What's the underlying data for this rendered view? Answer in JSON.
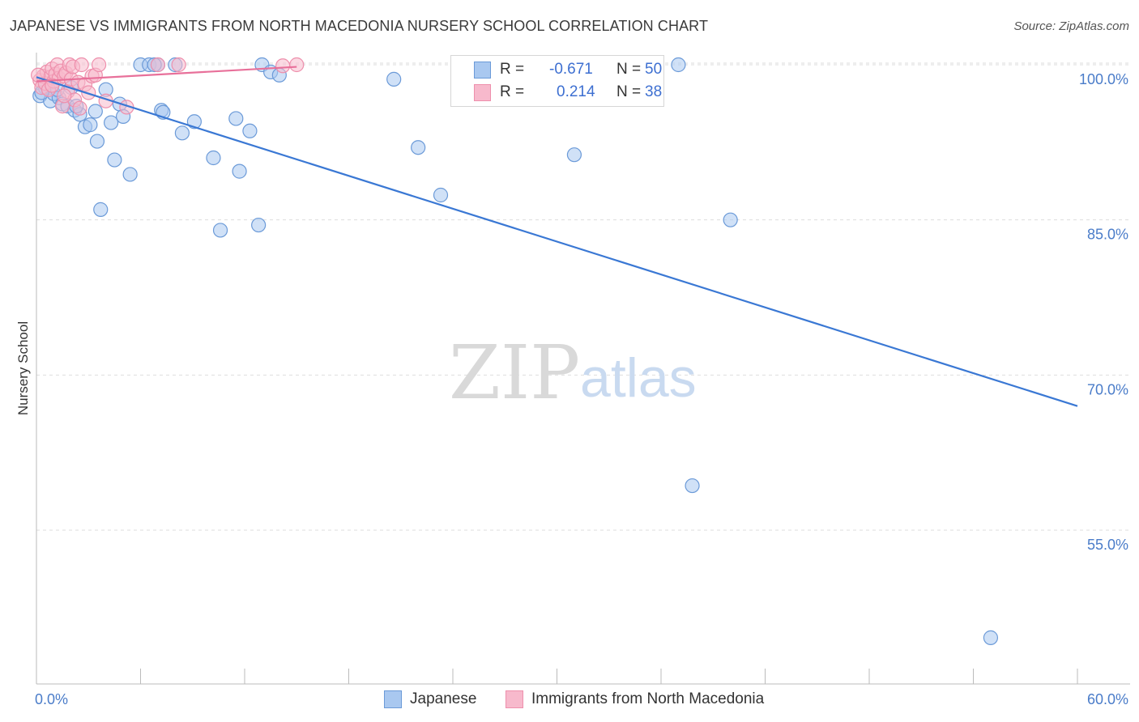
{
  "header": {
    "title": "JAPANESE VS IMMIGRANTS FROM NORTH MACEDONIA NURSERY SCHOOL CORRELATION CHART",
    "source": "Source: ZipAtlas.com"
  },
  "watermark": {
    "zip": "ZIP",
    "atlas": "atlas"
  },
  "stats_legend": {
    "rows": [
      {
        "r_label": "R =",
        "r_value": "-0.671",
        "n_label": "N =",
        "n_value": "50"
      },
      {
        "r_label": "R =",
        "r_value": "0.214",
        "n_label": "N =",
        "n_value": "38"
      }
    ]
  },
  "bottom_legend": {
    "series1": "Japanese",
    "series2": "Immigrants from North Macedonia"
  },
  "colors": {
    "series1_fill": "#a9c8f0",
    "series1_stroke": "#6b9ad8",
    "series1_line": "#3a78d4",
    "series2_fill": "#f7b9cc",
    "series2_stroke": "#ee8fac",
    "series2_line": "#e8709a",
    "grid": "#dddddd",
    "tick_text": "#4a7cc9"
  },
  "chart_data": {
    "type": "scatter",
    "title": "JAPANESE VS IMMIGRANTS FROM NORTH MACEDONIA NURSERY SCHOOL CORRELATION CHART",
    "xlabel": "",
    "ylabel": "Nursery School",
    "xlim": [
      0,
      60
    ],
    "ylim": [
      40,
      101.5
    ],
    "x_tick_labels": [
      "0.0%",
      "60.0%"
    ],
    "y_ticks": [
      55,
      70,
      85,
      100
    ],
    "y_tick_labels": [
      "55.0%",
      "70.0%",
      "85.0%",
      "100.0%"
    ],
    "grid": true,
    "series": [
      {
        "name": "Japanese",
        "r": -0.671,
        "n": 50,
        "trend": {
          "x": [
            0,
            60
          ],
          "y": [
            98.8,
            67.0
          ]
        },
        "points": [
          [
            0.2,
            97.0
          ],
          [
            0.5,
            97.8
          ],
          [
            0.8,
            96.5
          ],
          [
            1.0,
            97.2
          ],
          [
            1.3,
            96.8
          ],
          [
            1.5,
            96.2
          ],
          [
            1.8,
            96.0
          ],
          [
            2.0,
            97.8
          ],
          [
            2.2,
            95.6
          ],
          [
            2.5,
            95.2
          ],
          [
            2.8,
            94.0
          ],
          [
            3.1,
            94.2
          ],
          [
            3.4,
            95.5
          ],
          [
            3.5,
            92.6
          ],
          [
            3.7,
            86.0
          ],
          [
            4.0,
            97.6
          ],
          [
            4.3,
            94.4
          ],
          [
            4.5,
            90.8
          ],
          [
            4.8,
            96.2
          ],
          [
            5.0,
            95.0
          ],
          [
            5.4,
            89.4
          ],
          [
            6.0,
            100.0
          ],
          [
            6.5,
            100.0
          ],
          [
            7.0,
            100.0
          ],
          [
            7.2,
            95.6
          ],
          [
            7.3,
            95.4
          ],
          [
            8.0,
            100.0
          ],
          [
            8.4,
            93.4
          ],
          [
            9.1,
            94.5
          ],
          [
            10.2,
            91.0
          ],
          [
            10.6,
            84.0
          ],
          [
            11.5,
            94.8
          ],
          [
            11.7,
            89.7
          ],
          [
            12.3,
            93.6
          ],
          [
            12.8,
            84.5
          ],
          [
            13.0,
            100.0
          ],
          [
            13.5,
            99.3
          ],
          [
            14.0,
            99.0
          ],
          [
            20.6,
            98.6
          ],
          [
            22.0,
            92.0
          ],
          [
            23.3,
            87.4
          ],
          [
            31.0,
            91.3
          ],
          [
            37.0,
            100.0
          ],
          [
            37.8,
            59.3
          ],
          [
            40.0,
            85.0
          ],
          [
            55.0,
            44.6
          ],
          [
            0.3,
            97.3
          ],
          [
            1.2,
            97.6
          ],
          [
            6.8,
            100.0
          ],
          [
            2.3,
            96.0
          ]
        ]
      },
      {
        "name": "Immigrants from North Macedonia",
        "r": 0.214,
        "n": 38,
        "trend": {
          "x": [
            0,
            15
          ],
          "y": [
            98.4,
            99.8
          ]
        },
        "points": [
          [
            0.2,
            98.5
          ],
          [
            0.3,
            97.8
          ],
          [
            0.4,
            98.9
          ],
          [
            0.5,
            98.2
          ],
          [
            0.6,
            99.3
          ],
          [
            0.7,
            97.6
          ],
          [
            0.8,
            98.8
          ],
          [
            0.9,
            99.6
          ],
          [
            1.0,
            98.4
          ],
          [
            1.1,
            99.1
          ],
          [
            1.2,
            100.0
          ],
          [
            1.3,
            98.7
          ],
          [
            1.4,
            99.4
          ],
          [
            1.5,
            96.0
          ],
          [
            1.6,
            98.9
          ],
          [
            1.7,
            99.2
          ],
          [
            1.8,
            97.4
          ],
          [
            1.9,
            100.0
          ],
          [
            2.0,
            98.6
          ],
          [
            2.1,
            99.8
          ],
          [
            2.2,
            96.6
          ],
          [
            2.4,
            98.3
          ],
          [
            2.6,
            100.0
          ],
          [
            2.8,
            98.1
          ],
          [
            3.0,
            97.3
          ],
          [
            3.2,
            98.9
          ],
          [
            3.4,
            99.0
          ],
          [
            3.6,
            100.0
          ],
          [
            4.0,
            96.5
          ],
          [
            5.2,
            95.9
          ],
          [
            7.0,
            100.0
          ],
          [
            8.2,
            100.0
          ],
          [
            14.2,
            99.9
          ],
          [
            15.0,
            100.0
          ],
          [
            0.1,
            99.0
          ],
          [
            0.9,
            98.0
          ],
          [
            1.6,
            97.0
          ],
          [
            2.5,
            95.8
          ]
        ]
      }
    ]
  }
}
